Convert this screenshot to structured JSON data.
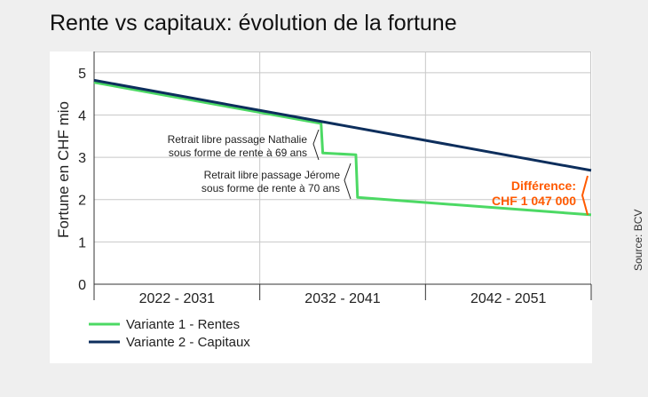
{
  "title": "Rente vs capitaux: évolution de la fortune",
  "source": "Source: BCV",
  "colors": {
    "rentes": "#4cd964",
    "capitaux": "#0d2e5c",
    "difference": "#ff5a00",
    "grid": "#c8c8c8",
    "axis": "#333333"
  },
  "annotations": {
    "nathalie": [
      "Retrait libre passage Nathalie",
      "sous forme de rente à 69 ans"
    ],
    "jerome": [
      "Retrait libre passage Jérome",
      "sous forme de rente à 70 ans"
    ],
    "difference": [
      "Différence:",
      "CHF 1 047 000"
    ]
  },
  "chart_data": {
    "type": "line",
    "title": "Rente vs capitaux: évolution de la fortune",
    "ylabel": "Fortune en CHF mio",
    "xlabel": "",
    "ylim": [
      0,
      5.5
    ],
    "yticks": [
      0,
      1,
      2,
      3,
      4,
      5
    ],
    "xlim": [
      0,
      3
    ],
    "categories": [
      "2022 - 2031",
      "2032 - 2041",
      "2042 - 2051"
    ],
    "grid": true,
    "legend_position": "bottom-left",
    "series": [
      {
        "name": "Variante 1 - Rentes",
        "color": "#4cd964",
        "points": [
          [
            0,
            4.77
          ],
          [
            1.37,
            3.8
          ],
          [
            1.38,
            3.1
          ],
          [
            1.58,
            3.06
          ],
          [
            1.59,
            2.05
          ],
          [
            3,
            1.64
          ]
        ]
      },
      {
        "name": "Variante 2 - Capitaux",
        "color": "#0d2e5c",
        "points": [
          [
            0,
            4.82
          ],
          [
            3,
            2.69
          ]
        ]
      }
    ]
  }
}
